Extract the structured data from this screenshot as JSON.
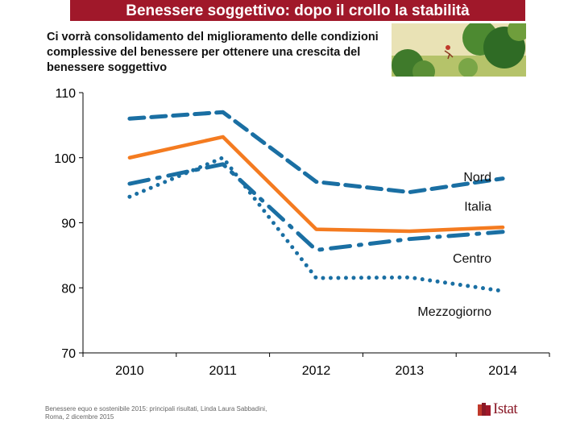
{
  "header": {
    "title": "Benessere soggettivo: dopo il crollo la stabilità",
    "subtitle": "Ci vorrà consolidamento del miglioramento delle condizioni complessive del benessere per ottenere una crescita del benessere soggettivo"
  },
  "chart_data": {
    "type": "line",
    "categories": [
      "2010",
      "2011",
      "2012",
      "2013",
      "2014"
    ],
    "ylim": [
      70,
      110
    ],
    "yticks": [
      70,
      80,
      90,
      100,
      110
    ],
    "grid": false,
    "series": [
      {
        "name": "Nord",
        "values": [
          106,
          107,
          96.3,
          94.7,
          96.8
        ],
        "color": "#1a6fa3",
        "style": "dashed"
      },
      {
        "name": "Italia",
        "values": [
          100,
          103.2,
          89,
          88.7,
          89.3
        ],
        "color": "#f47b20",
        "style": "solid"
      },
      {
        "name": "Centro",
        "values": [
          96,
          99,
          85.8,
          87.5,
          88.6
        ],
        "color": "#1a6fa3",
        "style": "dashdot"
      },
      {
        "name": "Mezzogiorno",
        "values": [
          94,
          100,
          81.5,
          81.6,
          79.5
        ],
        "color": "#1a6fa3",
        "style": "dotted"
      }
    ]
  },
  "footer": {
    "source_line1": "Benessere equo e sostenibile 2015: principali risultati, Linda Laura Sabbadini,",
    "source_line2": "Roma, 2 dicembre 2015",
    "logo_text": "Istat"
  },
  "colors": {
    "title_bar": "#a0182a",
    "accent_orange": "#f47b20",
    "series_blue": "#1a6fa3"
  }
}
